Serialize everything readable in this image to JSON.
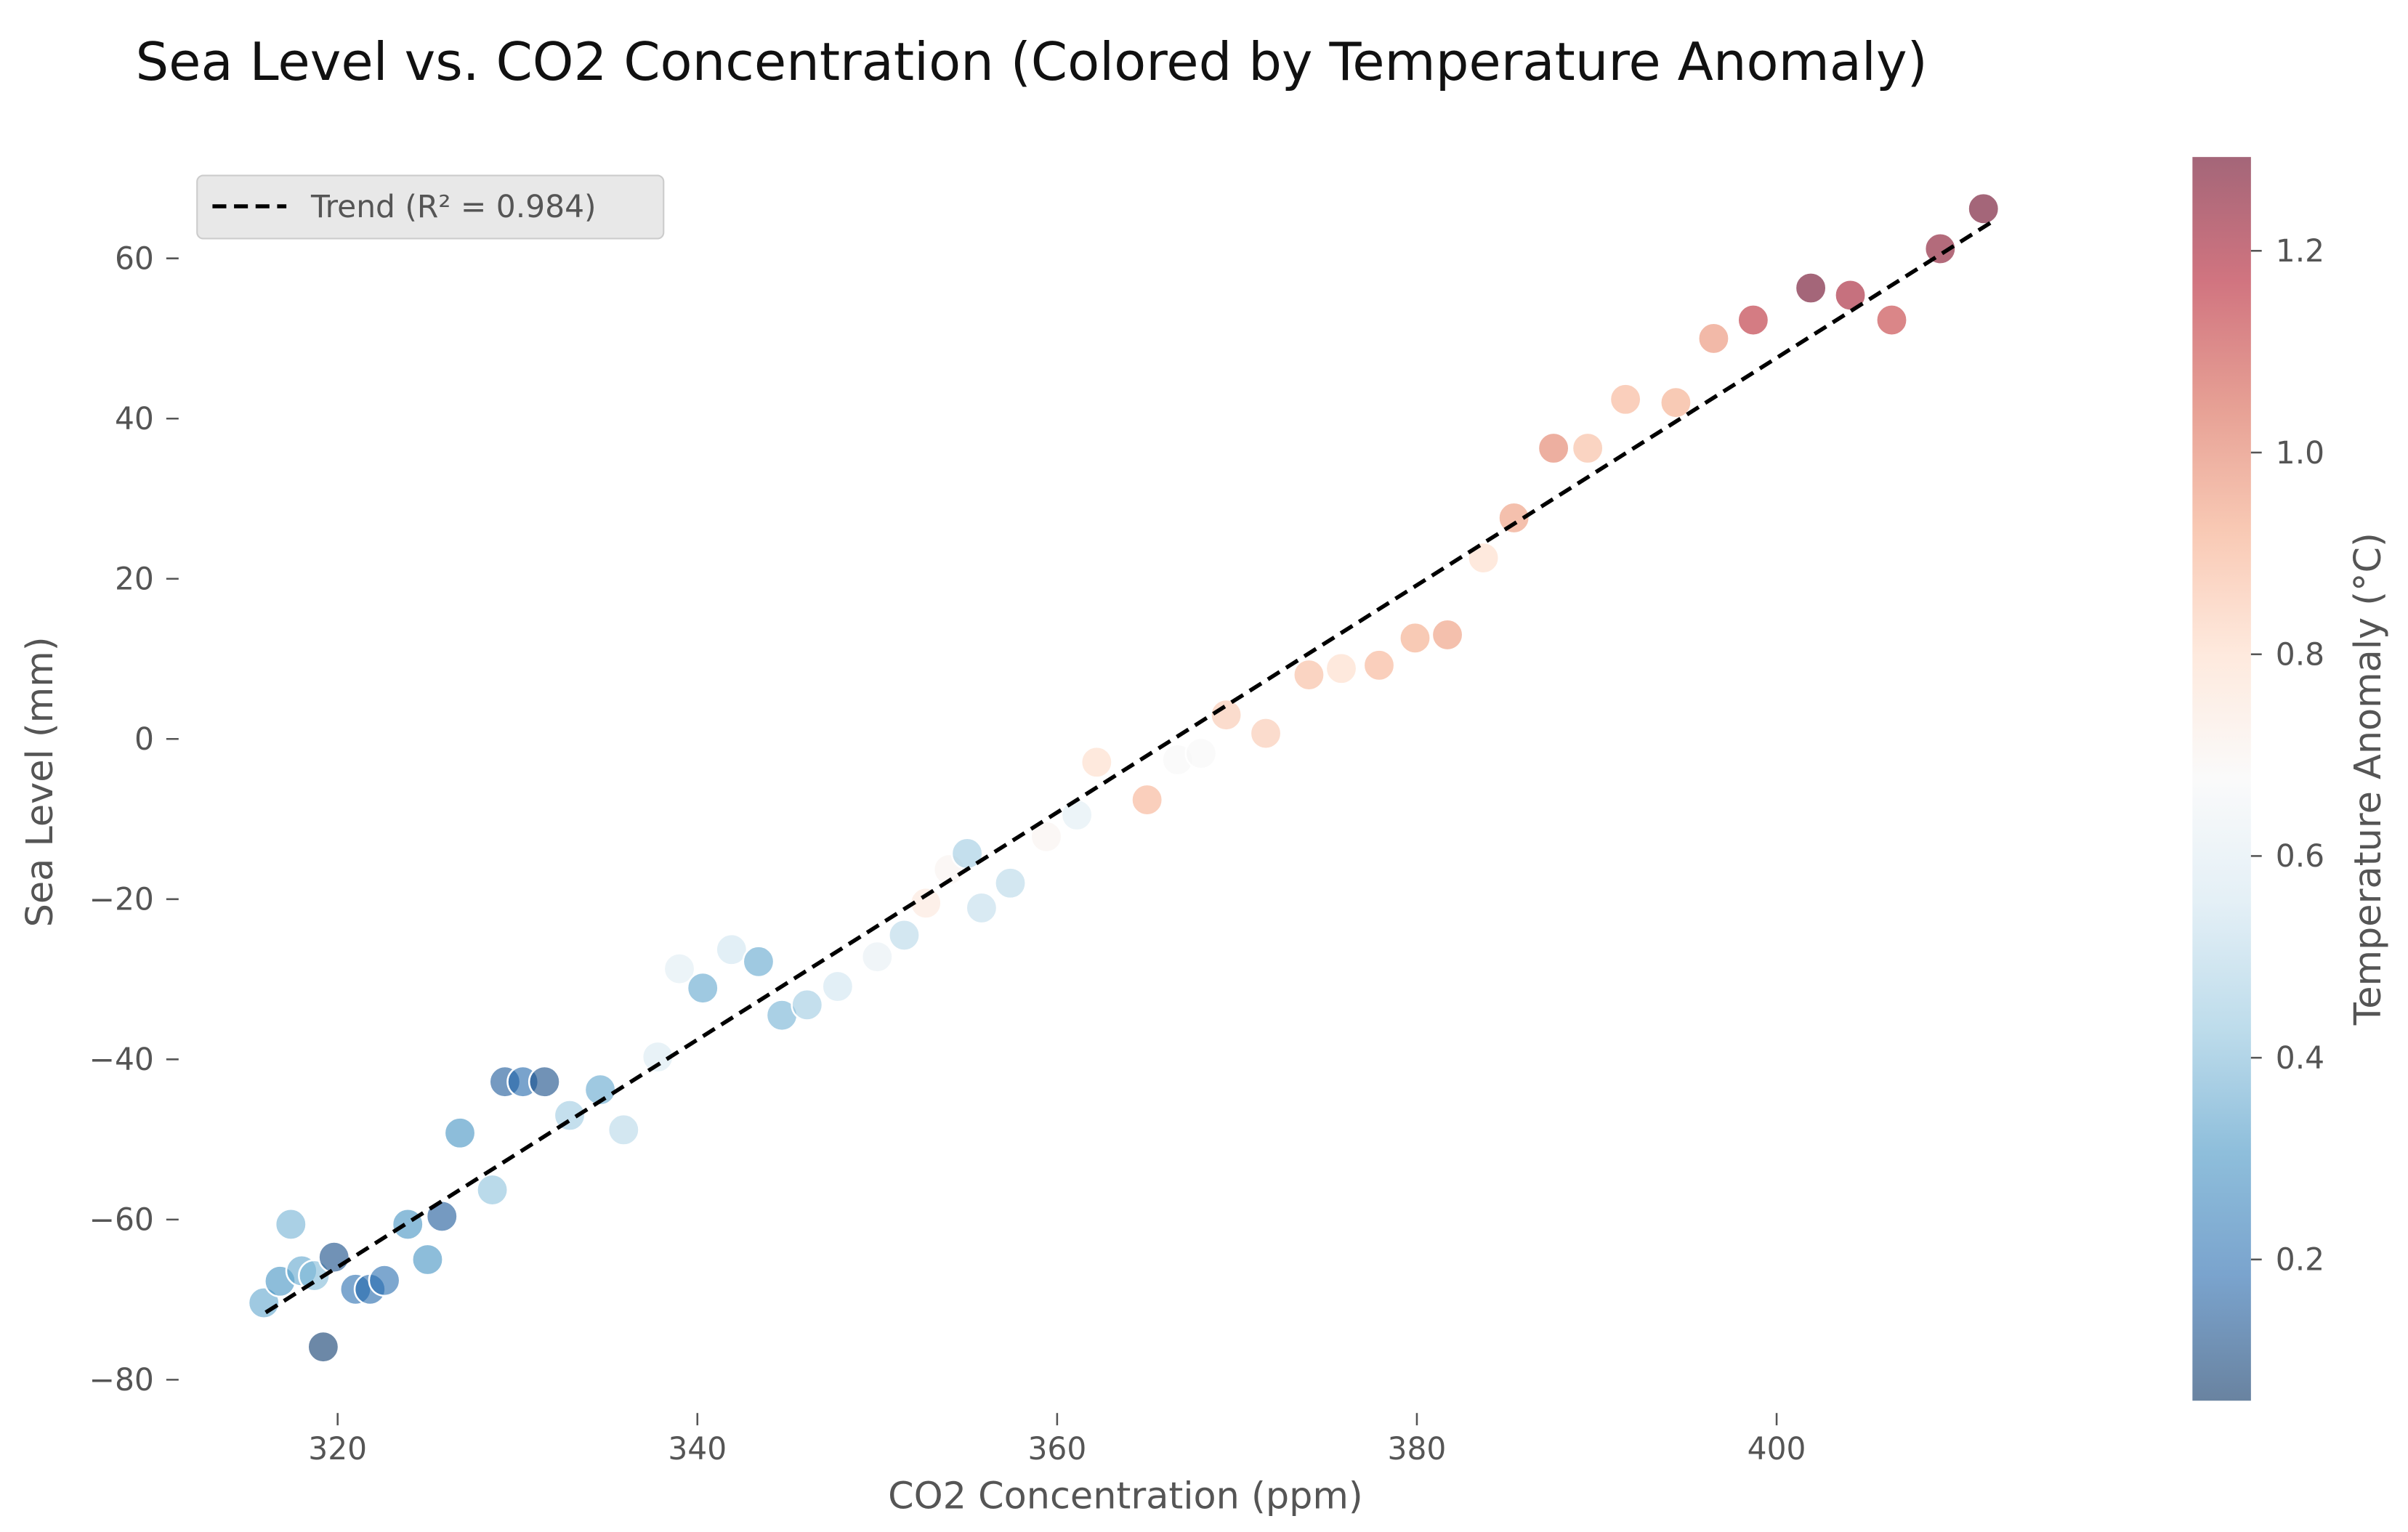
{
  "chart_data": {
    "type": "scatter",
    "title": "Sea Level vs. CO2 Concentration (Colored by Temperature Anomaly)",
    "x_label": "CO2 Concentration (ppm)",
    "y_label": "Sea Level (mm)",
    "color_label": "Temperature Anomaly (°C)",
    "colormap": "RdBu_r",
    "x": [
      315.9,
      316.8,
      317.4,
      318.0,
      318.7,
      319.2,
      319.8,
      321.0,
      321.8,
      322.6,
      323.9,
      325.0,
      325.8,
      326.8,
      328.6,
      329.3,
      330.3,
      331.5,
      332.9,
      334.6,
      335.9,
      337.8,
      339.0,
      340.3,
      341.9,
      343.4,
      344.7,
      346.1,
      347.8,
      350.0,
      351.5,
      352.7,
      354.0,
      355.0,
      355.8,
      357.4,
      359.4,
      361.1,
      362.2,
      365.0,
      366.7,
      368.0,
      369.4,
      371.6,
      374.0,
      375.8,
      377.9,
      379.9,
      381.7,
      383.7,
      385.4,
      387.6,
      389.5,
      391.6,
      394.4,
      396.5,
      398.7,
      401.9,
      404.1,
      406.4,
      409.1,
      411.5
    ],
    "y": [
      -70.4,
      -67.7,
      -60.6,
      -66.4,
      -67.0,
      -75.9,
      -64.7,
      -68.7,
      -68.7,
      -67.6,
      -60.6,
      -65.0,
      -59.6,
      -49.2,
      -56.3,
      -42.8,
      -42.8,
      -42.8,
      -47.0,
      -43.8,
      -48.8,
      -39.7,
      -28.7,
      -31.1,
      -26.3,
      -27.8,
      -34.5,
      -33.2,
      -30.9,
      -27.2,
      -24.5,
      -20.5,
      -16.3,
      -14.3,
      -21.1,
      -18.0,
      -12.2,
      -9.5,
      -2.9,
      -7.6,
      -2.6,
      -1.8,
      3.0,
      0.7,
      8.0,
      8.8,
      9.2,
      12.6,
      13.0,
      22.6,
      27.6,
      36.3,
      36.3,
      42.4,
      42.0,
      50.0,
      52.3,
      56.3,
      55.4,
      52.3,
      61.2,
      66.2
    ],
    "color_values": [
      0.35,
      0.3,
      0.38,
      0.35,
      0.4,
      0.08,
      0.12,
      0.2,
      0.18,
      0.2,
      0.3,
      0.3,
      0.15,
      0.3,
      0.42,
      0.15,
      0.18,
      0.12,
      0.45,
      0.35,
      0.5,
      0.58,
      0.6,
      0.35,
      0.55,
      0.35,
      0.38,
      0.45,
      0.55,
      0.62,
      0.5,
      0.75,
      0.7,
      0.45,
      0.52,
      0.5,
      0.7,
      0.6,
      0.8,
      0.9,
      0.68,
      0.68,
      0.85,
      0.85,
      0.88,
      0.8,
      0.9,
      0.92,
      0.95,
      0.8,
      0.95,
      1.0,
      0.88,
      0.9,
      0.92,
      0.97,
      1.15,
      1.3,
      1.2,
      1.12,
      1.25,
      1.3
    ],
    "trend": {
      "name": "Trend (R² = 0.984)",
      "x": [
        316,
        412
      ],
      "y": [
        -71.6,
        64.6
      ]
    },
    "xlim": [
      311.5,
      415.5
    ],
    "ylim": [
      -85.5,
      74
    ],
    "xticks": [
      320,
      340,
      360,
      380,
      400
    ],
    "yticks": [
      {
        "value": -80,
        "label": "−80"
      },
      {
        "value": -60,
        "label": "−60"
      },
      {
        "value": -40,
        "label": "−40"
      },
      {
        "value": -20,
        "label": "−20"
      },
      0,
      20,
      40,
      60
    ],
    "clim": [
      0.06,
      1.293
    ],
    "cticks": [
      0.2,
      0.4,
      0.6,
      0.8,
      1.0,
      1.2
    ],
    "grid": false,
    "legend_position": "upper left"
  }
}
